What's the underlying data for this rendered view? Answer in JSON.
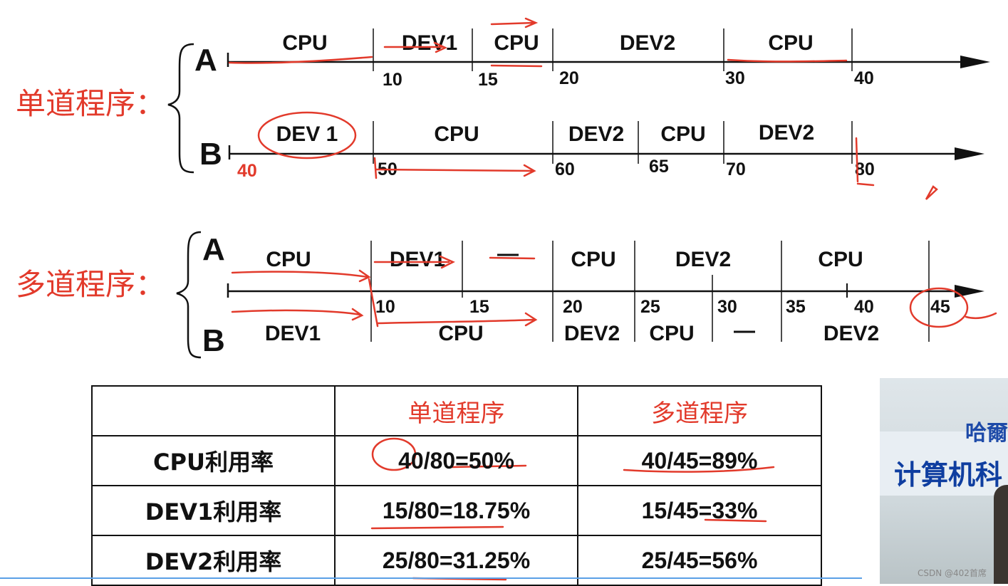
{
  "single": {
    "group_label": "单道程序：",
    "laneA": {
      "label": "A",
      "segments": [
        {
          "label": "CPU",
          "start": 0,
          "end": 10
        },
        {
          "label": "DEV1",
          "start": 10,
          "end": 15
        },
        {
          "label": "CPU",
          "start": 15,
          "end": 20
        },
        {
          "label": "DEV2",
          "start": 20,
          "end": 30
        },
        {
          "label": "CPU",
          "start": 30,
          "end": 40
        }
      ],
      "ticks": [
        "10",
        "15",
        "20",
        "30",
        "40"
      ]
    },
    "laneB": {
      "label": "B",
      "start_tick": "40",
      "segments": [
        {
          "label": "DEV 1",
          "start": 40,
          "end": 50
        },
        {
          "label": "CPU",
          "start": 50,
          "end": 60
        },
        {
          "label": "DEV2",
          "start": 60,
          "end": 65
        },
        {
          "label": "CPU",
          "start": 65,
          "end": 70
        },
        {
          "label": "DEV2",
          "start": 70,
          "end": 80
        }
      ],
      "ticks": [
        "50",
        "60",
        "65",
        "70",
        "80"
      ]
    }
  },
  "multi": {
    "group_label": "多道程序：",
    "laneA": {
      "label": "A",
      "segments": [
        {
          "label": "CPU",
          "start": 0,
          "end": 10
        },
        {
          "label": "DEV1",
          "start": 10,
          "end": 15
        },
        {
          "label": "—",
          "start": 15,
          "end": 20
        },
        {
          "label": "CPU",
          "start": 20,
          "end": 25
        },
        {
          "label": "DEV2",
          "start": 25,
          "end": 35
        },
        {
          "label": "CPU",
          "start": 35,
          "end": 45
        }
      ]
    },
    "laneB": {
      "label": "B",
      "segments": [
        {
          "label": "DEV1",
          "start": 0,
          "end": 10
        },
        {
          "label": "CPU",
          "start": 10,
          "end": 20
        },
        {
          "label": "DEV2",
          "start": 20,
          "end": 25
        },
        {
          "label": "CPU",
          "start": 25,
          "end": 30
        },
        {
          "label": "—",
          "start": 30,
          "end": 35
        },
        {
          "label": "DEV2",
          "start": 35,
          "end": 45
        }
      ]
    },
    "ticks": [
      "10",
      "15",
      "20",
      "25",
      "30",
      "35",
      "40",
      "45"
    ]
  },
  "table": {
    "headers": [
      "",
      "单道程序",
      "多道程序"
    ],
    "rows": [
      {
        "label": "CPU利用率",
        "single": "40/80=50%",
        "multi": "40/45=89%"
      },
      {
        "label": "DEV1利用率",
        "single": "15/80=18.75%",
        "multi": "15/45=33%"
      },
      {
        "label": "DEV2利用率",
        "single": "25/80=31.25%",
        "multi": "25/45=56%"
      }
    ]
  },
  "video": {
    "text_top": "哈爾",
    "text_main": "计算机科"
  },
  "watermark": "CSDN @402首席",
  "colors": {
    "annotation_red": "#e23a2b",
    "ink": "#111111",
    "progress_bar": "#5aa0e6"
  }
}
